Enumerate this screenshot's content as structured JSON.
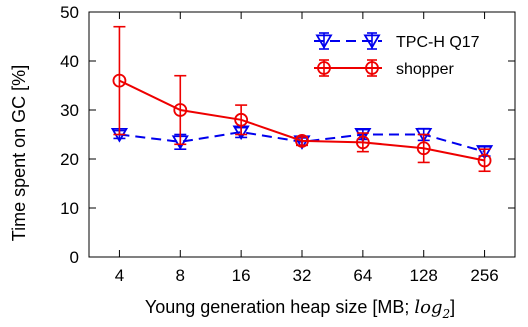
{
  "chart_data": {
    "type": "line",
    "xlabel": "Young generation heap size [MB; ",
    "xlabel_math": "log",
    "xlabel_math_sub": "2",
    "xlabel_close": "]",
    "ylabel": "Time spent on GC [%]",
    "categories": [
      "4",
      "8",
      "16",
      "32",
      "64",
      "128",
      "256"
    ],
    "ylim": [
      0,
      50
    ],
    "yticks": [
      "0",
      "10",
      "20",
      "30",
      "40",
      "50"
    ],
    "legend_position": "top-right",
    "series": [
      {
        "name": "TPC-H Q17",
        "color": "#0000ee",
        "marker": "triangle-down",
        "line_style": "dashed",
        "values": [
          25.0,
          23.5,
          25.5,
          23.5,
          25.0,
          25.0,
          21.5
        ],
        "err_low": [
          24.2,
          22.0,
          24.4,
          22.8,
          24.0,
          23.8,
          20.6
        ],
        "err_high": [
          25.8,
          25.0,
          26.4,
          24.3,
          26.0,
          26.2,
          22.5
        ]
      },
      {
        "name": "shopper",
        "color": "#ee0000",
        "marker": "circle",
        "line_style": "solid",
        "values": [
          36.0,
          30.0,
          28.0,
          23.7,
          23.4,
          22.2,
          19.7
        ],
        "err_low": [
          25.0,
          23.0,
          25.0,
          22.8,
          21.5,
          19.3,
          17.5
        ],
        "err_high": [
          47.0,
          37.0,
          31.0,
          24.5,
          25.3,
          25.0,
          22.0
        ]
      }
    ]
  }
}
